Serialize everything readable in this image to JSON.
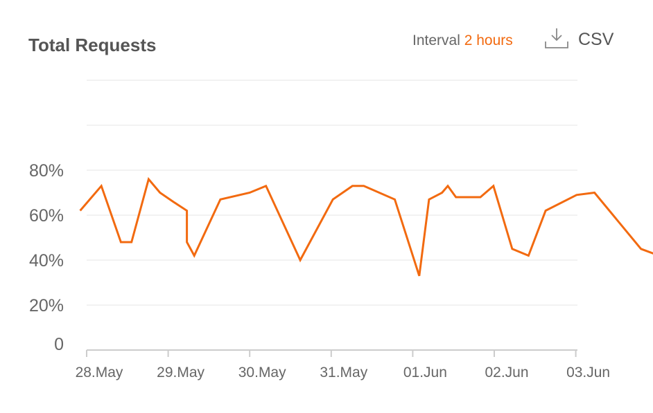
{
  "header": {
    "title": "Total Requests",
    "interval_label": "Interval",
    "interval_value": "2 hours",
    "csv_label": "CSV",
    "download_icon": "download-icon"
  },
  "colors": {
    "line": "#f26a10",
    "grid": "#eeeeee",
    "axis": "#cccccc",
    "text": "#666666"
  },
  "chart_data": {
    "type": "line",
    "title": "Total Requests",
    "xlabel": "",
    "ylabel": "",
    "x_ticks": [
      "28.May",
      "29.May",
      "30.May",
      "31.May",
      "01.Jun",
      "02.Jun",
      "03.Jun"
    ],
    "y_ticks": [
      "0",
      "20%",
      "40%",
      "60%",
      "80%"
    ],
    "ylim": [
      0,
      120
    ],
    "grid": true,
    "series": [
      {
        "x": [
          -0.08,
          0.18,
          0.42,
          0.55,
          0.76,
          0.9,
          1.06,
          1.23,
          1.23,
          1.32,
          1.64,
          2.0,
          2.2,
          2.62,
          3.02,
          3.26,
          3.4,
          3.78,
          4.08,
          4.2,
          4.36,
          4.43,
          4.53,
          4.83,
          4.99,
          5.22,
          5.42,
          5.63,
          6.01,
          6.23,
          6.8,
          7.02
        ],
        "y": [
          62,
          73,
          48,
          48,
          76,
          70,
          66,
          62,
          48,
          42,
          67,
          70,
          73,
          40,
          67,
          73,
          73,
          67,
          33,
          67,
          70,
          73,
          68,
          68,
          73,
          45,
          42,
          62,
          69,
          70,
          45,
          42
        ]
      }
    ]
  }
}
